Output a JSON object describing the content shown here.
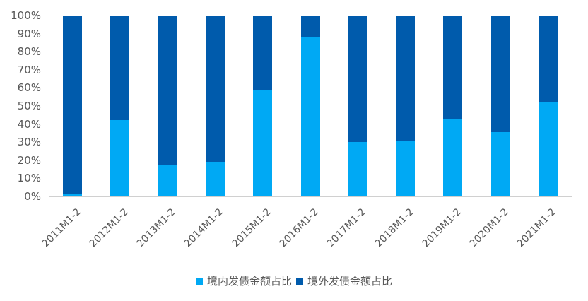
{
  "chart_data": {
    "type": "bar",
    "stacked": true,
    "percent_stacked": true,
    "title": "",
    "xlabel": "",
    "ylabel": "",
    "ylim": [
      0,
      100
    ],
    "yticks": [
      "0%",
      "10%",
      "20%",
      "30%",
      "40%",
      "50%",
      "60%",
      "70%",
      "80%",
      "90%",
      "100%"
    ],
    "categories": [
      "2011M1-2",
      "2012M1-2",
      "2013M1-2",
      "2014M1-2",
      "2015M1-2",
      "2016M1-2",
      "2017M1-2",
      "2018M1-2",
      "2019M1-2",
      "2020M1-2",
      "2021M1-2"
    ],
    "series": [
      {
        "name": "境内发债金额占比",
        "color": "#00A9F4",
        "values": [
          1.5,
          42,
          17,
          19,
          59,
          88,
          30,
          31,
          42.5,
          35.5,
          52
        ]
      },
      {
        "name": "境外发债金额占比",
        "color": "#005BAC",
        "values": [
          98.5,
          58,
          83,
          81,
          41,
          12,
          70,
          69,
          57.5,
          64.5,
          48
        ]
      }
    ],
    "grid": false,
    "legend_position": "bottom"
  },
  "legend": {
    "items": [
      {
        "label": "境内发债金额占比",
        "color": "#00A9F4"
      },
      {
        "label": "境外发债金额占比",
        "color": "#005BAC"
      }
    ]
  }
}
